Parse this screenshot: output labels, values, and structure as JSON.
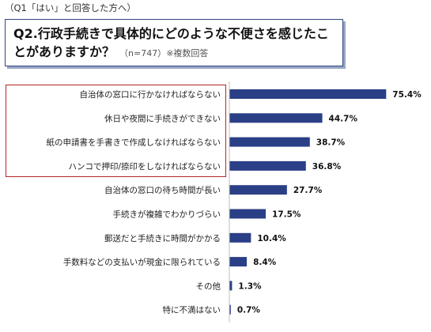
{
  "header": {
    "note": "（Q1「はい」と回答した方へ）",
    "question": "Q2.行政手続きで具体的にどのような不便さを感じたことがありますか？",
    "sub": "（n=747）※複数回答"
  },
  "chart_data": {
    "type": "bar",
    "orientation": "horizontal",
    "title": "",
    "xlabel": "",
    "ylabel": "",
    "unit": "%",
    "xlim": [
      0,
      100
    ],
    "grid": false,
    "bar_color": "#2b3f86",
    "highlight_color": "#b02828",
    "highlighted_categories": 4,
    "categories": [
      "自治体の窓口に行かなければならない",
      "休日や夜間に手続きができない",
      "紙の申請書を手書きで作成しなければならない",
      "ハンコで押印/捺印をしなければならない",
      "自治体の窓口の待ち時間が長い",
      "手続きが複雑でわかりづらい",
      "郵送だと手続きに時間がかかる",
      "手数料などの支払いが現金に限られている",
      "その他",
      "特に不満はない"
    ],
    "values": [
      75.4,
      44.7,
      38.7,
      36.8,
      27.7,
      17.5,
      10.4,
      8.4,
      1.3,
      0.7
    ],
    "value_labels": [
      "75.4%",
      "44.7%",
      "38.7%",
      "36.8%",
      "27.7%",
      "17.5%",
      "10.4%",
      "8.4%",
      "1.3%",
      "0.7%"
    ]
  }
}
